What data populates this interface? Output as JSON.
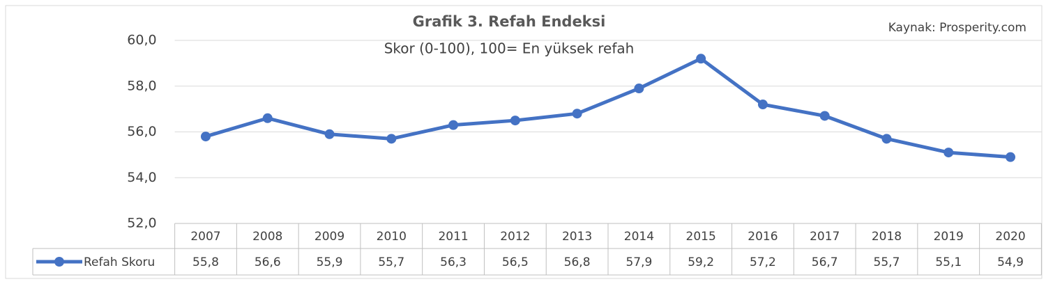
{
  "chart_data": {
    "type": "line",
    "title": "Grafik 3. Refah Endeksi",
    "subtitle": "Skor (0-100), 100= En yüksek refah",
    "annotation": "Kaynak: Prosperity.com",
    "categories": [
      "2007",
      "2008",
      "2009",
      "2010",
      "2011",
      "2012",
      "2013",
      "2014",
      "2015",
      "2016",
      "2017",
      "2018",
      "2019",
      "2020"
    ],
    "series": [
      {
        "name": "Refah Skoru",
        "color": "#4472c4",
        "values": [
          55.8,
          56.6,
          55.9,
          55.7,
          56.3,
          56.5,
          56.8,
          57.9,
          59.2,
          57.2,
          56.7,
          55.7,
          55.1,
          54.9
        ],
        "value_labels": [
          "55,8",
          "56,6",
          "55,9",
          "55,7",
          "56,3",
          "56,5",
          "56,8",
          "57,9",
          "59,2",
          "57,2",
          "56,7",
          "55,7",
          "55,1",
          "54,9"
        ]
      }
    ],
    "ylim": [
      52,
      60
    ],
    "yticks": [
      {
        "value": 52,
        "label": "52,0"
      },
      {
        "value": 54,
        "label": "54,0"
      },
      {
        "value": 56,
        "label": "56,0"
      },
      {
        "value": 58,
        "label": "58,0"
      },
      {
        "value": 60,
        "label": "60,0"
      }
    ],
    "grid": true,
    "data_table": true
  }
}
